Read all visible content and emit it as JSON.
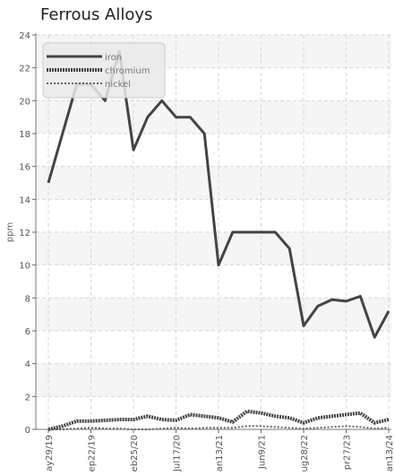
{
  "chart_data": {
    "type": "line",
    "title": "Ferrous Alloys",
    "ylabel": "ppm",
    "xlabel": "",
    "ylim": [
      0,
      24
    ],
    "yticks": [
      0,
      2,
      4,
      6,
      8,
      10,
      12,
      14,
      16,
      18,
      20,
      22,
      24
    ],
    "grid": true,
    "legend_position": "top-left",
    "xtick_labels": [
      "ay29/19",
      "ep22/19",
      "eb25/20",
      "Jul17/20",
      "an13/21",
      "Jun9/21",
      "ug28/22",
      "pr27/23",
      "an13/24"
    ],
    "series": [
      {
        "name": "iron",
        "color": "#444444",
        "style": "solid",
        "values": [
          15,
          18,
          21,
          21,
          20,
          23,
          17,
          19,
          20,
          19,
          19,
          18,
          10,
          12,
          12,
          12,
          12,
          11,
          6.3,
          7.5,
          7.9,
          7.8,
          8.1,
          5.6,
          7.2
        ]
      },
      {
        "name": "chromium",
        "color": "#444444",
        "style": "dotted",
        "values": [
          0,
          0.2,
          0.5,
          0.5,
          0.55,
          0.6,
          0.6,
          0.8,
          0.6,
          0.55,
          0.9,
          0.8,
          0.7,
          0.45,
          1.1,
          1.0,
          0.8,
          0.7,
          0.4,
          0.7,
          0.8,
          0.9,
          1.0,
          0.4,
          0.6
        ]
      },
      {
        "name": "nickel",
        "color": "#666666",
        "style": "dashed",
        "values": [
          0,
          0,
          0.05,
          0.1,
          0.05,
          0.05,
          0,
          0,
          0.05,
          0.1,
          0.05,
          0.1,
          0.1,
          0.1,
          0.2,
          0.2,
          0.15,
          0.1,
          0.05,
          0.1,
          0.15,
          0.2,
          0.15,
          0.05,
          0.1
        ]
      }
    ]
  }
}
